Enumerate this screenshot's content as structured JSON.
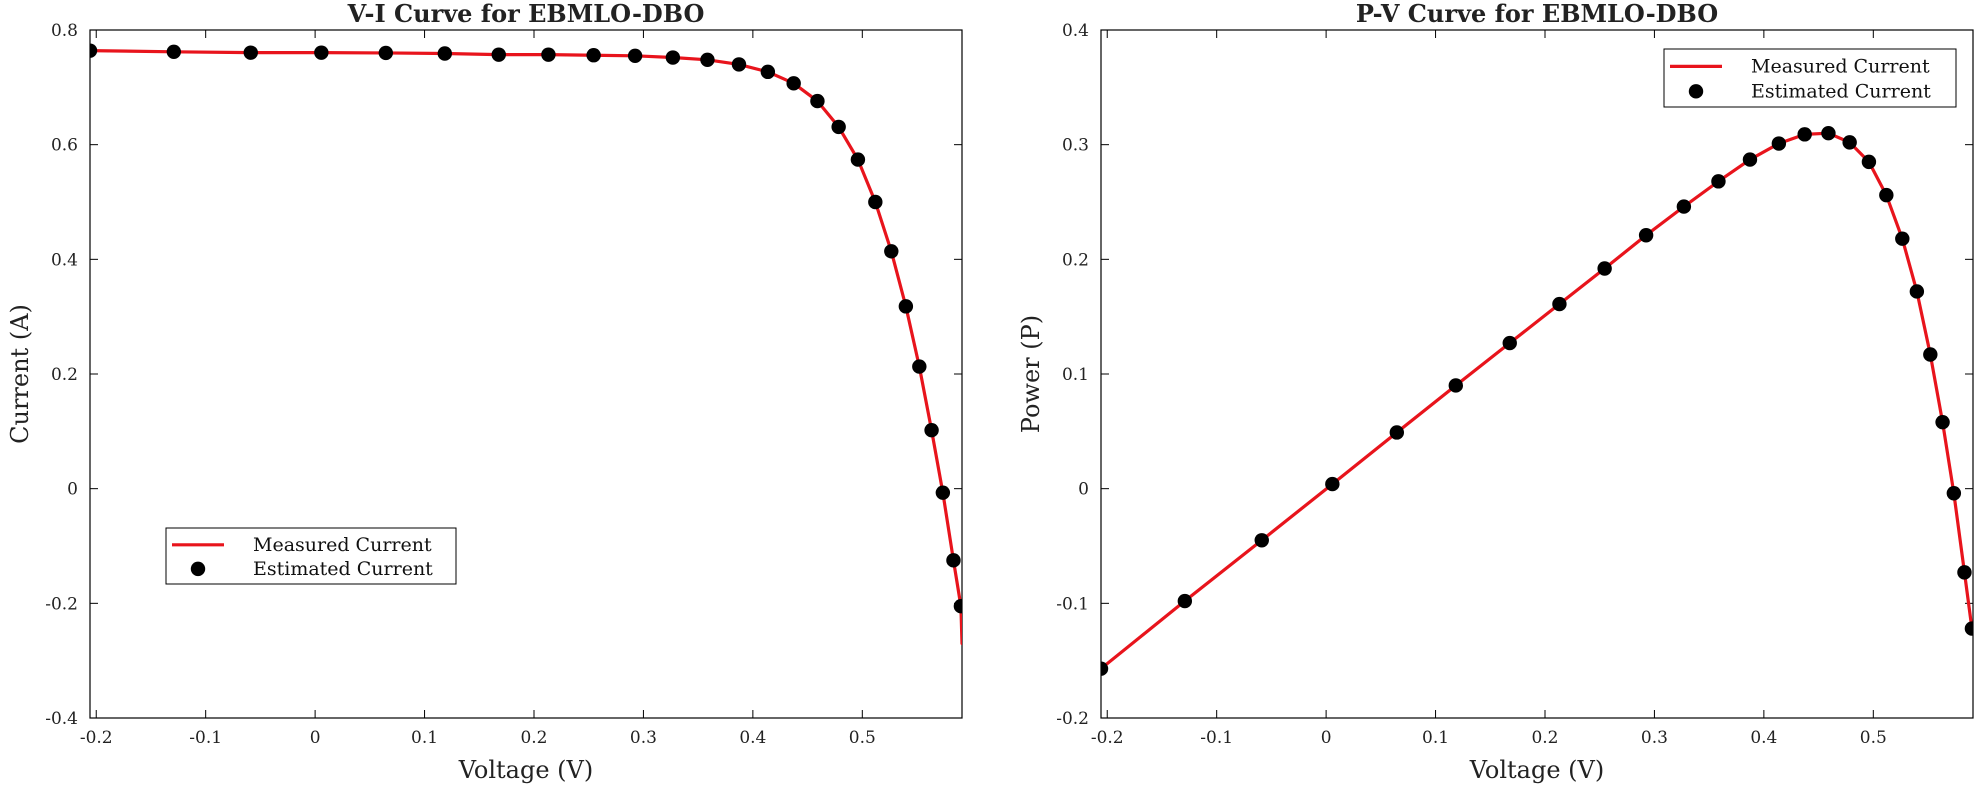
{
  "chart_data": [
    {
      "type": "line+scatter",
      "title": "V-I Curve for EBMLO-DBO",
      "xlabel": "Voltage (V)",
      "ylabel": "Current (A)",
      "xlim": [
        -0.2057,
        0.5911
      ],
      "ylim": [
        -0.4,
        0.8
      ],
      "xticks": [
        -0.2,
        -0.1,
        0,
        0.1,
        0.2,
        0.3,
        0.4,
        0.5
      ],
      "xtick_labels": [
        "-0.2",
        "-0.1",
        "0",
        "0.1",
        "0.2",
        "0.3",
        "0.4",
        "0.5"
      ],
      "yticks": [
        -0.4,
        -0.2,
        0,
        0.2,
        0.4,
        0.6,
        0.8
      ],
      "ytick_labels": [
        "-0.4",
        "-0.2",
        "0",
        "0.2",
        "0.4",
        "0.6",
        "0.8"
      ],
      "grid": false,
      "legend_position": "lower-left",
      "series": [
        {
          "name": "Measured Current",
          "kind": "line",
          "color": "#e8141c",
          "x": [
            -0.2057,
            -0.1291,
            -0.0588,
            0.0057,
            0.0646,
            0.1185,
            0.1678,
            0.2132,
            0.2545,
            0.2924,
            0.3269,
            0.3585,
            0.3873,
            0.4137,
            0.4373,
            0.459,
            0.4784,
            0.496,
            0.5119,
            0.5265,
            0.5398,
            0.5521,
            0.5633,
            0.5736,
            0.5833,
            0.5901,
            0.5911
          ],
          "y": [
            0.764,
            0.762,
            0.7605,
            0.7605,
            0.76,
            0.759,
            0.757,
            0.757,
            0.756,
            0.755,
            0.752,
            0.748,
            0.74,
            0.727,
            0.707,
            0.676,
            0.631,
            0.574,
            0.5,
            0.414,
            0.318,
            0.213,
            0.102,
            -0.007,
            -0.125,
            -0.205,
            -0.27
          ]
        },
        {
          "name": "Estimated Current",
          "kind": "markers",
          "color": "#000000",
          "x": [
            -0.2057,
            -0.1291,
            -0.0588,
            0.0057,
            0.0646,
            0.1185,
            0.1678,
            0.2132,
            0.2545,
            0.2924,
            0.3269,
            0.3585,
            0.3873,
            0.4137,
            0.4373,
            0.459,
            0.4784,
            0.496,
            0.5119,
            0.5265,
            0.5398,
            0.5521,
            0.5633,
            0.5736,
            0.5833,
            0.5901
          ],
          "y": [
            0.764,
            0.762,
            0.7605,
            0.7605,
            0.76,
            0.759,
            0.757,
            0.757,
            0.756,
            0.755,
            0.752,
            0.748,
            0.74,
            0.727,
            0.707,
            0.676,
            0.631,
            0.574,
            0.5,
            0.414,
            0.318,
            0.213,
            0.102,
            -0.007,
            -0.125,
            -0.205
          ]
        }
      ]
    },
    {
      "type": "line+scatter",
      "title": "P-V Curve for EBMLO-DBO",
      "xlabel": "Voltage (V)",
      "ylabel": "Power (P)",
      "xlim": [
        -0.2057,
        0.5911
      ],
      "ylim": [
        -0.2,
        0.4
      ],
      "xticks": [
        -0.2,
        -0.1,
        0,
        0.1,
        0.2,
        0.3,
        0.4,
        0.5
      ],
      "xtick_labels": [
        "-0.2",
        "-0.1",
        "0",
        "0.1",
        "0.2",
        "0.3",
        "0.4",
        "0.5"
      ],
      "yticks": [
        -0.2,
        -0.1,
        0,
        0.1,
        0.2,
        0.3,
        0.4
      ],
      "ytick_labels": [
        "-0.2",
        "-0.1",
        "0",
        "0.1",
        "0.2",
        "0.3",
        "0.4"
      ],
      "grid": false,
      "legend_position": "top-right",
      "series": [
        {
          "name": "Measured Current",
          "kind": "line",
          "color": "#e8141c",
          "x": [
            -0.2057,
            -0.1291,
            -0.0588,
            0.0057,
            0.0646,
            0.1185,
            0.1678,
            0.2132,
            0.2545,
            0.2924,
            0.3269,
            0.3585,
            0.3873,
            0.4137,
            0.4373,
            0.459,
            0.4784,
            0.496,
            0.5119,
            0.5265,
            0.5398,
            0.5521,
            0.5633,
            0.5736,
            0.5833,
            0.5901
          ],
          "y": [
            -0.157,
            -0.098,
            -0.045,
            0.004,
            0.049,
            0.09,
            0.127,
            0.161,
            0.192,
            0.221,
            0.246,
            0.268,
            0.287,
            0.301,
            0.309,
            0.31,
            0.302,
            0.285,
            0.256,
            0.218,
            0.172,
            0.117,
            0.058,
            -0.004,
            -0.073,
            -0.122
          ]
        },
        {
          "name": "Estimated Current",
          "kind": "markers",
          "color": "#000000",
          "x": [
            -0.2057,
            -0.1291,
            -0.0588,
            0.0057,
            0.0646,
            0.1185,
            0.1678,
            0.2132,
            0.2545,
            0.2924,
            0.3269,
            0.3585,
            0.3873,
            0.4137,
            0.4373,
            0.459,
            0.4784,
            0.496,
            0.5119,
            0.5265,
            0.5398,
            0.5521,
            0.5633,
            0.5736,
            0.5833,
            0.5901
          ],
          "y": [
            -0.157,
            -0.098,
            -0.045,
            0.004,
            0.049,
            0.09,
            0.127,
            0.161,
            0.192,
            0.221,
            0.246,
            0.268,
            0.287,
            0.301,
            0.309,
            0.31,
            0.302,
            0.285,
            0.256,
            0.218,
            0.172,
            0.117,
            0.058,
            -0.004,
            -0.073,
            -0.122
          ]
        }
      ]
    }
  ]
}
